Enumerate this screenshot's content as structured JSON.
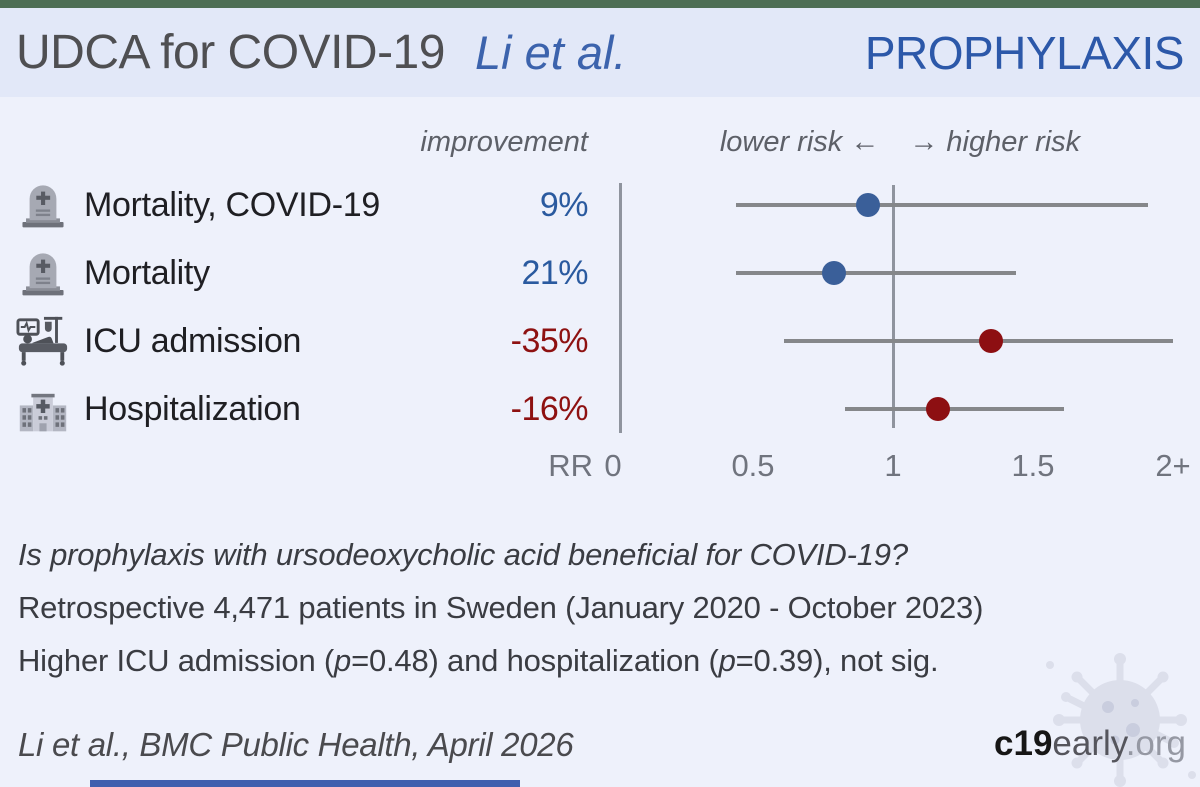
{
  "header": {
    "title": "UDCA for COVID-19",
    "author": "Li et al.",
    "tag": "PROPHYLAXIS"
  },
  "column_headers": {
    "improvement": "improvement",
    "risk_left": "lower risk ←",
    "risk_right": "→ higher risk"
  },
  "rows": [
    {
      "icon": "tombstone-icon",
      "label": "Mortality, COVID-19",
      "improvement": "9%",
      "direction": "positive",
      "rr": 0.91,
      "ci_low": 0.44,
      "ci_high": 1.91
    },
    {
      "icon": "tombstone-icon",
      "label": "Mortality",
      "improvement": "21%",
      "direction": "positive",
      "rr": 0.79,
      "ci_low": 0.44,
      "ci_high": 1.44
    },
    {
      "icon": "icu-bed-icon",
      "label": "ICU admission",
      "improvement": "-35%",
      "direction": "negative",
      "rr": 1.35,
      "ci_low": 0.61,
      "ci_high": 2.0
    },
    {
      "icon": "hospital-icon",
      "label": "Hospitalization",
      "improvement": "-16%",
      "direction": "negative",
      "rr": 1.16,
      "ci_low": 0.83,
      "ci_high": 1.61
    }
  ],
  "axis": {
    "prefix": "RR",
    "ticks": [
      {
        "text": "0",
        "value": 0
      },
      {
        "text": "0.5",
        "value": 0.5
      },
      {
        "text": "1",
        "value": 1
      },
      {
        "text": "1.5",
        "value": 1.5
      },
      {
        "text": "2+",
        "value": 2
      }
    ]
  },
  "summary": {
    "question": "Is prophylaxis with ursodeoxycholic acid beneficial for COVID-19?",
    "study": "Retrospective 4,471 patients in Sweden (January 2020 - October 2023)",
    "result_segments": [
      "Higher ICU admission (",
      "p",
      "=0.48) and hospitalization (",
      "p",
      "=0.39), not sig."
    ]
  },
  "footer": {
    "citation": "Li et al., BMC Public Health, April 2026",
    "brand_bold": "c19",
    "brand_mid": "early",
    "brand_tail": ".org"
  },
  "colors": {
    "top_bar": "#4d6e55",
    "header_bg": "#e2e8f8",
    "body_bg": "#eef1fb",
    "author_blue": "#3c63ad",
    "tag_blue": "#2c58a9",
    "positive_blue": "#2a5a9f",
    "negative_red": "#8e1111",
    "dot_blue": "#3a5f99",
    "dot_red": "#8d0f12",
    "ci_gray": "#85878a",
    "grid_gray": "#8f949e",
    "bottom_bar": "#3f5fae"
  },
  "chart_data": {
    "type": "scatter",
    "subtype": "forest_plot",
    "title": "UDCA for COVID-19 — Li et al. — PROPHYLAXIS",
    "xlabel": "RR",
    "xlim": [
      0,
      2.05
    ],
    "x_ticks": [
      "0",
      "0.5",
      "1",
      "1.5",
      "2+"
    ],
    "reference_line": 1,
    "grid": false,
    "legend_position": "none",
    "series": [
      {
        "name": "Mortality, COVID-19",
        "improvement_pct": 9,
        "rr": 0.91,
        "ci": [
          0.44,
          1.91
        ],
        "color": "#3a5f99"
      },
      {
        "name": "Mortality",
        "improvement_pct": 21,
        "rr": 0.79,
        "ci": [
          0.44,
          1.44
        ],
        "color": "#3a5f99"
      },
      {
        "name": "ICU admission",
        "improvement_pct": -35,
        "rr": 1.35,
        "ci": [
          0.61,
          2.0
        ],
        "ci_high_capped": true,
        "color": "#8d0f12"
      },
      {
        "name": "Hospitalization",
        "improvement_pct": -16,
        "rr": 1.16,
        "ci": [
          0.83,
          1.61
        ],
        "color": "#8d0f12"
      }
    ]
  }
}
